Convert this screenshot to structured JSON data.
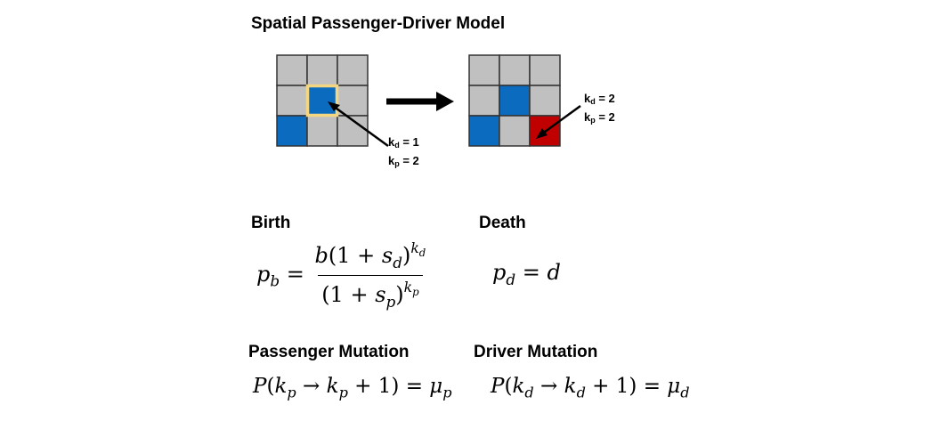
{
  "title": "Spatial Passenger-Driver Model",
  "colors": {
    "cell_empty": "#c0c0c0",
    "cell_driver": "#0a6bbf",
    "cell_passenger": "#c00000",
    "highlight": "#f5d680",
    "grid_line": "#333333"
  },
  "grid_left": {
    "cells": [
      [
        "empty",
        "empty",
        "empty"
      ],
      [
        "empty",
        "driver",
        "empty"
      ],
      [
        "driver",
        "empty",
        "empty"
      ]
    ],
    "highlight": {
      "row": 1,
      "col": 1
    },
    "label": {
      "kd": "k",
      "kd_sub": "d",
      "kd_val": " = 1",
      "kp": "k",
      "kp_sub": "p",
      "kp_val": " = 2"
    }
  },
  "grid_right": {
    "cells": [
      [
        "empty",
        "empty",
        "empty"
      ],
      [
        "empty",
        "driver",
        "empty"
      ],
      [
        "driver",
        "empty",
        "passenger"
      ]
    ],
    "label": {
      "kd": "k",
      "kd_sub": "d",
      "kd_val": " = 2",
      "kp": "k",
      "kp_sub": "p",
      "kp_val": " = 2"
    }
  },
  "birth": {
    "heading": "Birth",
    "lhs": "p",
    "lhs_sub": "b",
    "num_b": "b",
    "num_paren": "(1 + ",
    "num_s": "s",
    "num_s_sub": "d",
    "num_close": ")",
    "num_exp": "k",
    "num_exp_sub": "d",
    "den_paren": "(1 + ",
    "den_s": "s",
    "den_s_sub": "p",
    "den_close": ")",
    "den_exp": "k",
    "den_exp_sub": "p"
  },
  "death": {
    "heading": "Death",
    "lhs": "p",
    "lhs_sub": "d",
    "rhs": "d"
  },
  "passenger_mutation": {
    "heading": "Passenger Mutation",
    "P": "P",
    "k1": "k",
    "k1_sub": "p",
    "k2": "k",
    "k2_sub": "p",
    "plus_one": " + 1",
    "mu": "μ",
    "mu_sub": "p"
  },
  "driver_mutation": {
    "heading": "Driver Mutation",
    "P": "P",
    "k1": "k",
    "k1_sub": "d",
    "k2": "k",
    "k2_sub": "d",
    "plus_one": " + 1",
    "mu": "μ",
    "mu_sub": "d"
  }
}
